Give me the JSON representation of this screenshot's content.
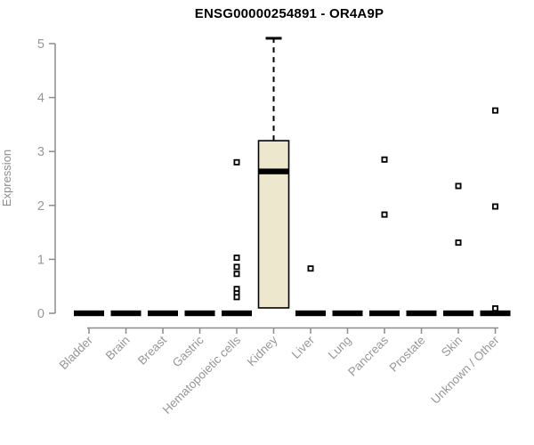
{
  "chart_data": {
    "type": "boxplot",
    "title": "ENSG00000254891 - OR4A9P",
    "ylabel": "Expression",
    "xlabel": "",
    "ylim": [
      0,
      5
    ],
    "yticks": [
      0,
      1,
      2,
      3,
      4,
      5
    ],
    "grid": false,
    "legend": "none",
    "box_fill_color": "#ece7cd",
    "box_stroke_color": "#000000",
    "axis_color": "#8c8c8c",
    "label_color": "#979797",
    "categories": [
      "Bladder",
      "Brain",
      "Breast",
      "Gastric",
      "Hematopoietic cells",
      "Kidney",
      "Liver",
      "Lung",
      "Pancreas",
      "Prostate",
      "Skin",
      "Unknown / Other"
    ],
    "boxes": [
      {
        "category": "Bladder",
        "q1": 0,
        "median": 0,
        "q3": 0,
        "whisker_low": 0,
        "whisker_high": 0,
        "outliers": []
      },
      {
        "category": "Brain",
        "q1": 0,
        "median": 0,
        "q3": 0,
        "whisker_low": 0,
        "whisker_high": 0,
        "outliers": []
      },
      {
        "category": "Breast",
        "q1": 0,
        "median": 0,
        "q3": 0,
        "whisker_low": 0,
        "whisker_high": 0,
        "outliers": []
      },
      {
        "category": "Gastric",
        "q1": 0,
        "median": 0,
        "q3": 0,
        "whisker_low": 0,
        "whisker_high": 0,
        "outliers": []
      },
      {
        "category": "Hematopoietic cells",
        "q1": 0,
        "median": 0,
        "q3": 0,
        "whisker_low": 0,
        "whisker_high": 0,
        "outliers": [
          2.8,
          1.03,
          0.86,
          0.73,
          0.45,
          0.37,
          0.3
        ]
      },
      {
        "category": "Kidney",
        "q1": 0.1,
        "median": 2.63,
        "q3": 3.2,
        "whisker_low": 0.1,
        "whisker_high": 5.1,
        "outliers": []
      },
      {
        "category": "Liver",
        "q1": 0,
        "median": 0,
        "q3": 0,
        "whisker_low": 0,
        "whisker_high": 0,
        "outliers": [
          0.83
        ]
      },
      {
        "category": "Lung",
        "q1": 0,
        "median": 0,
        "q3": 0,
        "whisker_low": 0,
        "whisker_high": 0,
        "outliers": []
      },
      {
        "category": "Pancreas",
        "q1": 0,
        "median": 0,
        "q3": 0,
        "whisker_low": 0,
        "whisker_high": 0,
        "outliers": [
          2.85,
          1.83
        ]
      },
      {
        "category": "Prostate",
        "q1": 0,
        "median": 0,
        "q3": 0,
        "whisker_low": 0,
        "whisker_high": 0,
        "outliers": []
      },
      {
        "category": "Skin",
        "q1": 0,
        "median": 0,
        "q3": 0,
        "whisker_low": 0,
        "whisker_high": 0,
        "outliers": [
          2.36,
          1.31
        ]
      },
      {
        "category": "Unknown / Other",
        "q1": 0,
        "median": 0,
        "q3": 0,
        "whisker_low": 0,
        "whisker_high": 0,
        "outliers": [
          3.76,
          1.98,
          0.09
        ]
      }
    ]
  }
}
